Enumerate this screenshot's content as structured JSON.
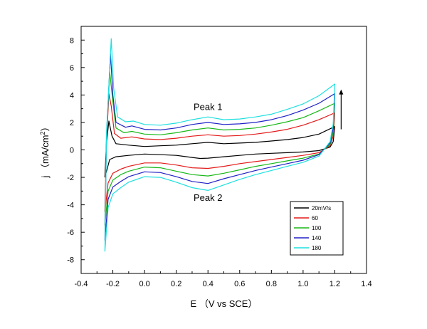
{
  "chart_data": {
    "type": "line",
    "xlabel": "E （V vs SCE）",
    "ylabel": "j （mA/cm",
    "ylabel_superscript": "2",
    "ylabel_close": "）",
    "xlim": [
      -0.4,
      1.4
    ],
    "ylim": [
      -9,
      9
    ],
    "xticks": [
      "-0.4",
      "-0.2",
      "0.0",
      "0.2",
      "0.4",
      "0.6",
      "0.8",
      "1.0",
      "1.2",
      "1.4"
    ],
    "yticks": [
      "-8",
      "-6",
      "-4",
      "-2",
      "0",
      "2",
      "4",
      "6",
      "8"
    ],
    "grid": false,
    "legend_position": "lower-right",
    "annotations": [
      {
        "text": "Peak 1",
        "x": 0.4,
        "y": 2.9
      },
      {
        "text": "Peak 2",
        "x": 0.4,
        "y": -3.7
      }
    ],
    "arrow": {
      "direction": "up",
      "at_x": 1.24,
      "from_y": 1.5,
      "to_y": 4.4
    },
    "series": [
      {
        "name": "20mV/s",
        "color": "#000000",
        "anodic": [
          [
            -0.25,
            -2.0
          ],
          [
            -0.24,
            0.5
          ],
          [
            -0.225,
            2.1
          ],
          [
            -0.205,
            1.0
          ],
          [
            -0.18,
            0.45
          ],
          [
            -0.1,
            0.35
          ],
          [
            0.0,
            0.25
          ],
          [
            0.1,
            0.3
          ],
          [
            0.2,
            0.35
          ],
          [
            0.3,
            0.45
          ],
          [
            0.4,
            0.55
          ],
          [
            0.5,
            0.45
          ],
          [
            0.6,
            0.5
          ],
          [
            0.7,
            0.55
          ],
          [
            0.8,
            0.65
          ],
          [
            0.9,
            0.75
          ],
          [
            1.0,
            0.9
          ],
          [
            1.1,
            1.15
          ],
          [
            1.2,
            1.7
          ]
        ],
        "cathodic": [
          [
            1.2,
            1.7
          ],
          [
            1.19,
            0.6
          ],
          [
            1.17,
            0.2
          ],
          [
            1.1,
            -0.05
          ],
          [
            1.0,
            -0.15
          ],
          [
            0.9,
            -0.2
          ],
          [
            0.8,
            -0.25
          ],
          [
            0.7,
            -0.3
          ],
          [
            0.6,
            -0.4
          ],
          [
            0.5,
            -0.5
          ],
          [
            0.4,
            -0.6
          ],
          [
            0.35,
            -0.62
          ],
          [
            0.3,
            -0.55
          ],
          [
            0.2,
            -0.4
          ],
          [
            0.1,
            -0.35
          ],
          [
            0.0,
            -0.3
          ],
          [
            -0.1,
            -0.4
          ],
          [
            -0.18,
            -0.5
          ],
          [
            -0.22,
            -0.7
          ],
          [
            -0.25,
            -2.0
          ]
        ]
      },
      {
        "name": "60",
        "color": "#e41a1a",
        "anodic": [
          [
            -0.25,
            -4.5
          ],
          [
            -0.24,
            0.5
          ],
          [
            -0.225,
            4.1
          ],
          [
            -0.21,
            3.2
          ],
          [
            -0.19,
            1.2
          ],
          [
            -0.15,
            0.85
          ],
          [
            -0.08,
            0.95
          ],
          [
            0.0,
            0.8
          ],
          [
            0.1,
            0.75
          ],
          [
            0.2,
            0.85
          ],
          [
            0.3,
            1.0
          ],
          [
            0.4,
            1.1
          ],
          [
            0.5,
            1.0
          ],
          [
            0.6,
            1.05
          ],
          [
            0.7,
            1.15
          ],
          [
            0.8,
            1.3
          ],
          [
            0.9,
            1.5
          ],
          [
            1.0,
            1.8
          ],
          [
            1.1,
            2.2
          ],
          [
            1.2,
            2.7
          ]
        ],
        "cathodic": [
          [
            1.2,
            2.7
          ],
          [
            1.19,
            1.0
          ],
          [
            1.17,
            0.3
          ],
          [
            1.1,
            -0.2
          ],
          [
            1.0,
            -0.4
          ],
          [
            0.9,
            -0.55
          ],
          [
            0.8,
            -0.7
          ],
          [
            0.7,
            -0.85
          ],
          [
            0.6,
            -1.0
          ],
          [
            0.5,
            -1.2
          ],
          [
            0.4,
            -1.35
          ],
          [
            0.3,
            -1.3
          ],
          [
            0.2,
            -1.1
          ],
          [
            0.1,
            -0.95
          ],
          [
            0.0,
            -0.95
          ],
          [
            -0.1,
            -1.2
          ],
          [
            -0.15,
            -1.4
          ],
          [
            -0.2,
            -1.7
          ],
          [
            -0.23,
            -2.4
          ],
          [
            -0.25,
            -4.5
          ]
        ]
      },
      {
        "name": "100",
        "color": "#16b816",
        "anodic": [
          [
            -0.25,
            -5.5
          ],
          [
            -0.24,
            0.8
          ],
          [
            -0.22,
            5.7
          ],
          [
            -0.2,
            3.5
          ],
          [
            -0.18,
            1.6
          ],
          [
            -0.13,
            1.25
          ],
          [
            -0.08,
            1.35
          ],
          [
            0.0,
            1.15
          ],
          [
            0.1,
            1.1
          ],
          [
            0.2,
            1.25
          ],
          [
            0.3,
            1.45
          ],
          [
            0.4,
            1.6
          ],
          [
            0.5,
            1.45
          ],
          [
            0.6,
            1.5
          ],
          [
            0.7,
            1.6
          ],
          [
            0.8,
            1.8
          ],
          [
            0.9,
            2.05
          ],
          [
            1.0,
            2.35
          ],
          [
            1.1,
            2.85
          ],
          [
            1.2,
            3.4
          ]
        ],
        "cathodic": [
          [
            1.2,
            3.4
          ],
          [
            1.19,
            1.3
          ],
          [
            1.17,
            0.4
          ],
          [
            1.1,
            -0.3
          ],
          [
            1.0,
            -0.6
          ],
          [
            0.9,
            -0.8
          ],
          [
            0.8,
            -1.0
          ],
          [
            0.7,
            -1.2
          ],
          [
            0.6,
            -1.45
          ],
          [
            0.5,
            -1.7
          ],
          [
            0.4,
            -1.9
          ],
          [
            0.3,
            -1.8
          ],
          [
            0.2,
            -1.55
          ],
          [
            0.1,
            -1.3
          ],
          [
            0.0,
            -1.25
          ],
          [
            -0.1,
            -1.55
          ],
          [
            -0.15,
            -1.8
          ],
          [
            -0.2,
            -2.2
          ],
          [
            -0.23,
            -3.0
          ],
          [
            -0.25,
            -5.5
          ]
        ]
      },
      {
        "name": "140",
        "color": "#2020c8",
        "anodic": [
          [
            -0.25,
            -6.6
          ],
          [
            -0.24,
            1.0
          ],
          [
            -0.215,
            7.0
          ],
          [
            -0.2,
            4.0
          ],
          [
            -0.18,
            2.0
          ],
          [
            -0.12,
            1.65
          ],
          [
            -0.08,
            1.75
          ],
          [
            0.0,
            1.5
          ],
          [
            0.1,
            1.45
          ],
          [
            0.2,
            1.6
          ],
          [
            0.3,
            1.85
          ],
          [
            0.4,
            2.0
          ],
          [
            0.5,
            1.85
          ],
          [
            0.6,
            1.9
          ],
          [
            0.7,
            2.0
          ],
          [
            0.8,
            2.2
          ],
          [
            0.9,
            2.5
          ],
          [
            1.0,
            2.9
          ],
          [
            1.1,
            3.4
          ],
          [
            1.2,
            4.1
          ]
        ],
        "cathodic": [
          [
            1.2,
            4.1
          ],
          [
            1.19,
            1.6
          ],
          [
            1.17,
            0.5
          ],
          [
            1.1,
            -0.35
          ],
          [
            1.0,
            -0.75
          ],
          [
            0.9,
            -1.0
          ],
          [
            0.8,
            -1.25
          ],
          [
            0.7,
            -1.5
          ],
          [
            0.6,
            -1.8
          ],
          [
            0.5,
            -2.1
          ],
          [
            0.4,
            -2.45
          ],
          [
            0.3,
            -2.3
          ],
          [
            0.2,
            -1.95
          ],
          [
            0.1,
            -1.65
          ],
          [
            0.0,
            -1.6
          ],
          [
            -0.1,
            -1.95
          ],
          [
            -0.15,
            -2.3
          ],
          [
            -0.2,
            -2.7
          ],
          [
            -0.23,
            -3.6
          ],
          [
            -0.25,
            -6.6
          ]
        ]
      },
      {
        "name": "180",
        "color": "#1ee0e0",
        "anodic": [
          [
            -0.25,
            -7.4
          ],
          [
            -0.24,
            1.2
          ],
          [
            -0.21,
            8.1
          ],
          [
            -0.195,
            4.5
          ],
          [
            -0.17,
            2.4
          ],
          [
            -0.12,
            2.05
          ],
          [
            -0.07,
            2.1
          ],
          [
            0.0,
            1.85
          ],
          [
            0.1,
            1.8
          ],
          [
            0.2,
            1.95
          ],
          [
            0.3,
            2.2
          ],
          [
            0.4,
            2.4
          ],
          [
            0.5,
            2.2
          ],
          [
            0.6,
            2.25
          ],
          [
            0.7,
            2.4
          ],
          [
            0.8,
            2.6
          ],
          [
            0.9,
            2.95
          ],
          [
            1.0,
            3.35
          ],
          [
            1.1,
            3.95
          ],
          [
            1.2,
            4.8
          ]
        ],
        "cathodic": [
          [
            1.2,
            4.8
          ],
          [
            1.19,
            1.9
          ],
          [
            1.17,
            0.6
          ],
          [
            1.1,
            -0.45
          ],
          [
            1.0,
            -0.9
          ],
          [
            0.9,
            -1.2
          ],
          [
            0.8,
            -1.5
          ],
          [
            0.7,
            -1.8
          ],
          [
            0.6,
            -2.15
          ],
          [
            0.5,
            -2.55
          ],
          [
            0.4,
            -2.95
          ],
          [
            0.3,
            -2.75
          ],
          [
            0.2,
            -2.35
          ],
          [
            0.1,
            -2.0
          ],
          [
            0.0,
            -1.95
          ],
          [
            -0.1,
            -2.35
          ],
          [
            -0.15,
            -2.75
          ],
          [
            -0.2,
            -3.2
          ],
          [
            -0.23,
            -4.2
          ],
          [
            -0.25,
            -7.4
          ]
        ]
      }
    ]
  }
}
